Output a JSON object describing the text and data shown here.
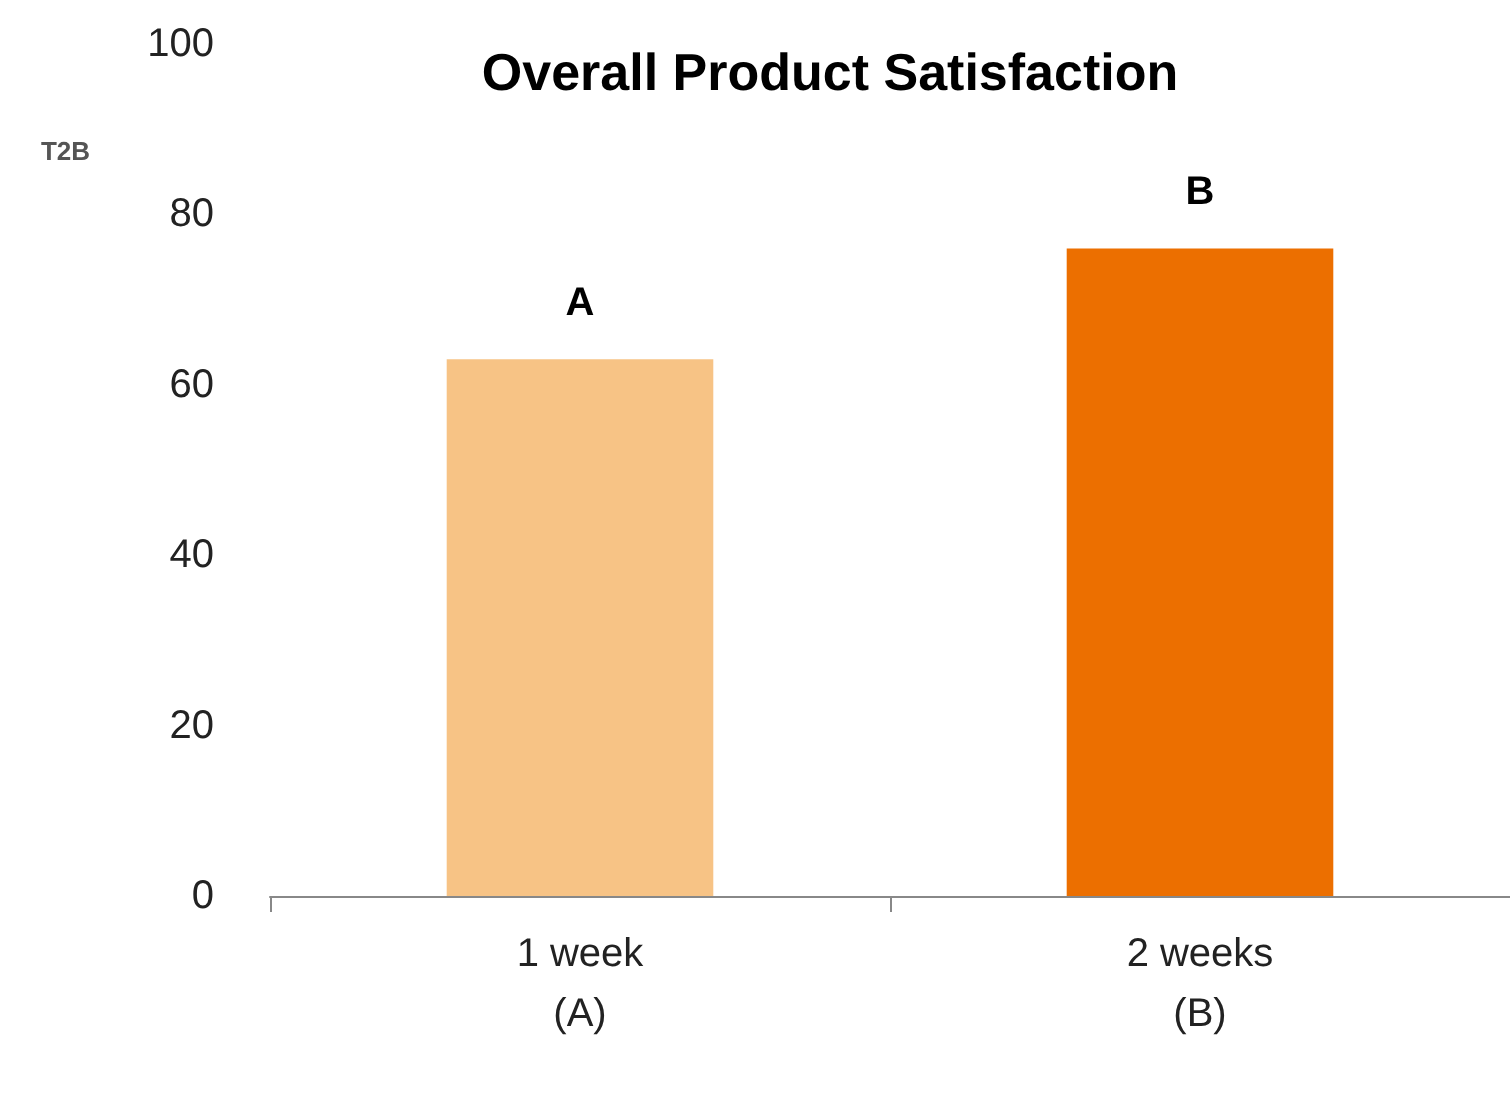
{
  "chart_data": {
    "type": "bar",
    "title": "Overall Product Satisfaction",
    "ylabel": "T2B",
    "categories": [
      "1 week\n(A)",
      "2 weeks\n(B)"
    ],
    "values": [
      63,
      76
    ],
    "colors": [
      "#f7c385",
      "#ec6f00"
    ],
    "ylim": [
      0,
      100
    ],
    "yticks": [
      0,
      20,
      40,
      60,
      80,
      100
    ],
    "grid": false,
    "annotations": [
      {
        "text": "A",
        "x": "1 week\n(A)",
        "y": 63
      },
      {
        "text": "B",
        "x": "2 weeks\n(B)",
        "y": 76
      }
    ]
  }
}
